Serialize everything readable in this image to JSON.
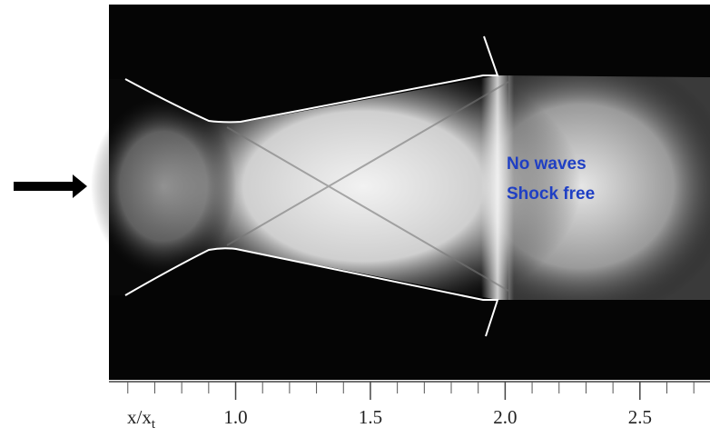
{
  "annotation": [
    "No waves",
    "Shock free"
  ],
  "axis": {
    "label": "x/x",
    "label_sub": "t",
    "xlim": [
      0.53,
      2.76
    ],
    "xticks": [
      {
        "value": 1,
        "label": "1.0"
      },
      {
        "value": 1.5,
        "label": "1.5"
      },
      {
        "value": 2,
        "label": "2.0"
      },
      {
        "value": 2.5,
        "label": "2.5"
      }
    ],
    "minor_ticks": [
      0.6,
      0.7,
      0.8,
      0.9,
      1.1,
      1.2,
      1.3,
      1.4,
      1.6,
      1.7,
      1.8,
      1.9,
      2.1,
      2.2,
      2.3,
      2.4,
      2.6,
      2.7
    ]
  }
}
